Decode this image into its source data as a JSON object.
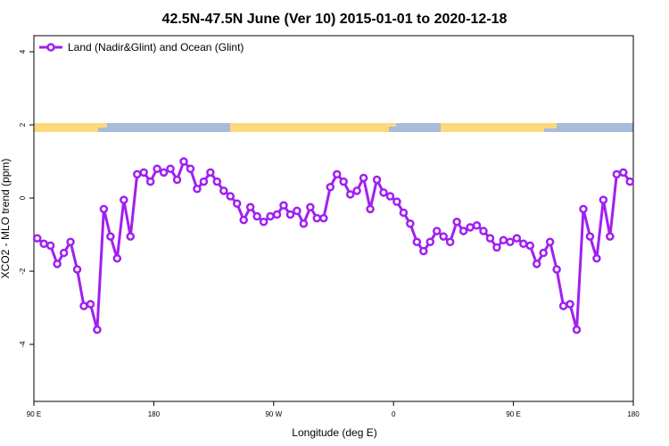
{
  "chart_data": {
    "type": "line",
    "title": "42.5N-47.5N June (Ver 10)   2015-01-01 to 2020-12-18",
    "xlabel": "Longitude (deg E)",
    "ylabel": "XCO2 - MLO trend (ppm)",
    "xlim": [
      90,
      540
    ],
    "ylim": [
      -5.56,
      4.44
    ],
    "xticks": [
      {
        "value": 90,
        "label": "90 E"
      },
      {
        "value": 180,
        "label": "180"
      },
      {
        "value": 270,
        "label": "90 W"
      },
      {
        "value": 360,
        "label": "0"
      },
      {
        "value": 450,
        "label": "90 E"
      },
      {
        "value": 540,
        "label": "180"
      }
    ],
    "yticks": [
      -4,
      -2,
      0,
      2,
      4
    ],
    "legend": "top-left",
    "x": [
      92.5,
      97.5,
      102.5,
      107.5,
      112.5,
      117.5,
      122.5,
      127.5,
      132.5,
      137.5,
      142.5,
      147.5,
      152.5,
      157.5,
      162.5,
      167.5,
      172.5,
      177.5,
      182.5,
      187.5,
      192.5,
      197.5,
      202.5,
      207.5,
      212.5,
      217.5,
      222.5,
      227.5,
      232.5,
      237.5,
      242.5,
      247.5,
      252.5,
      257.5,
      262.5,
      267.5,
      272.5,
      277.5,
      282.5,
      287.5,
      292.5,
      297.5,
      302.5,
      307.5,
      312.5,
      317.5,
      322.5,
      327.5,
      332.5,
      337.5,
      342.5,
      347.5,
      352.5,
      357.5,
      362.5,
      367.5,
      372.5,
      377.5,
      382.5,
      387.5,
      392.5,
      397.5,
      402.5,
      407.5,
      412.5,
      417.5,
      422.5,
      427.5,
      432.5,
      437.5,
      442.5,
      447.5,
      452.5,
      457.5,
      462.5,
      467.5,
      472.5,
      477.5,
      482.5,
      487.5,
      492.5,
      497.5,
      502.5,
      507.5,
      512.5,
      517.5,
      522.5,
      527.5,
      532.5,
      537.5
    ],
    "series": [
      {
        "name": "Land (Nadir&Glint) and Ocean (Glint)",
        "color": "#a020f0",
        "values": [
          -1.1,
          -1.25,
          -1.3,
          -1.8,
          -1.5,
          -1.2,
          -1.95,
          -2.95,
          -2.9,
          -3.6,
          -0.3,
          -1.05,
          -1.65,
          -0.05,
          -1.05,
          0.65,
          0.7,
          0.45,
          0.8,
          0.7,
          0.8,
          0.5,
          1.0,
          0.8,
          0.25,
          0.45,
          0.7,
          0.45,
          0.2,
          0.05,
          -0.15,
          -0.6,
          -0.25,
          -0.5,
          -0.65,
          -0.5,
          -0.45,
          -0.2,
          -0.45,
          -0.35,
          -0.7,
          -0.25,
          -0.55,
          -0.55,
          0.3,
          0.65,
          0.45,
          0.1,
          0.2,
          0.55,
          -0.3,
          0.5,
          0.15,
          0.05,
          -0.1,
          -0.4,
          -0.7,
          -1.2,
          -1.45,
          -1.2,
          -0.9,
          -1.05,
          -1.2,
          -0.65,
          -0.9,
          -0.8,
          -0.75,
          -0.9,
          -1.1,
          -1.35,
          -1.15,
          -1.2,
          -1.1,
          -1.25,
          -1.3,
          -1.8,
          -1.5,
          -1.2,
          -1.95,
          -2.95,
          -2.9,
          -3.6,
          -0.3,
          -1.05,
          -1.65,
          -0.05,
          -1.05,
          0.65,
          0.7,
          0.45
        ]
      }
    ]
  }
}
